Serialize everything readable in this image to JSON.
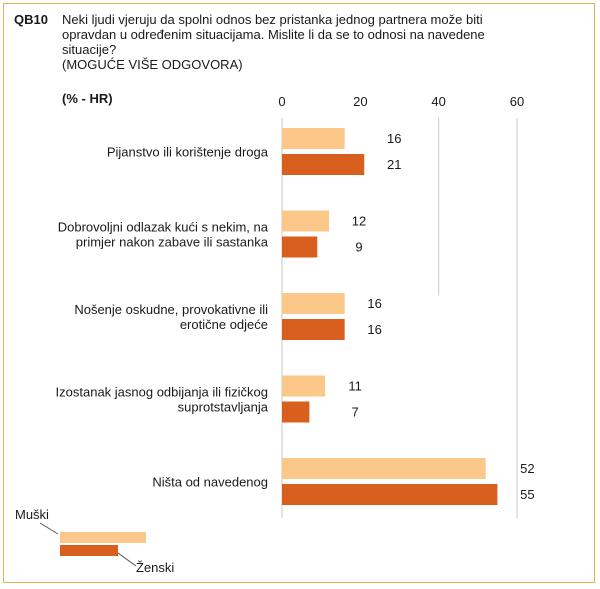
{
  "question": {
    "code": "QB10",
    "text_line1": "Neki ljudi vjeruju da spolni odnos bez pristanka jednog partnera može biti",
    "text_line2": "opravdan u određenim situacijama. Mislite li da se to odnosi na navedene",
    "text_line3": "situacije?",
    "text_line4": "(MOGUĆE VIŠE ODGOVORA)",
    "unit": "(% - HR)"
  },
  "colors": {
    "male": "#fbc88a",
    "female": "#d95f1e",
    "frame": "#e8b24a",
    "axis": "#c8c8c8"
  },
  "chart_data": {
    "type": "bar",
    "orientation": "horizontal",
    "title": "QB10",
    "xlim": [
      0,
      60
    ],
    "ticks": [
      0,
      20,
      40,
      60
    ],
    "categories": [
      [
        "Pijanstvo ili korištenje droga"
      ],
      [
        "Dobrovoljni odlazak kući s nekim, na",
        "primjer nakon zabave ili sastanka"
      ],
      [
        "Nošenje oskudne, provokativne ili",
        "erotične odjeće"
      ],
      [
        "Izostanak jasnog odbijanja ili fizičkog",
        "suprotstavljanja"
      ],
      [
        "Ništa od navedenog"
      ]
    ],
    "series": [
      {
        "name": "Muški",
        "values": [
          16,
          12,
          16,
          11,
          52
        ]
      },
      {
        "name": "Ženski",
        "values": [
          21,
          9,
          16,
          7,
          55
        ]
      }
    ],
    "legend": [
      "Muški",
      "Ženski"
    ]
  }
}
